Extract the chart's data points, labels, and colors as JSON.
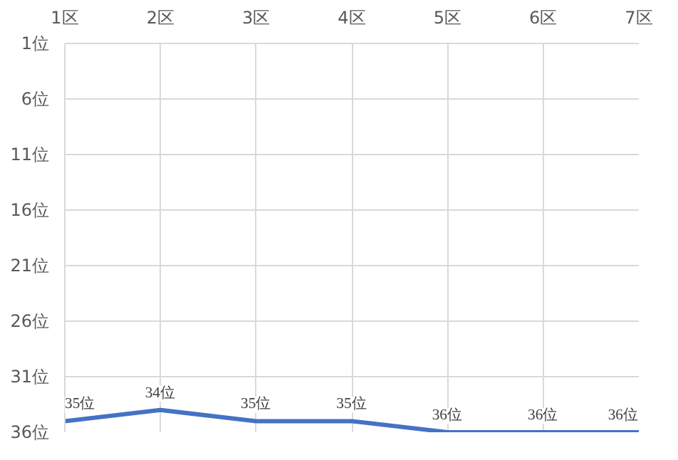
{
  "chart_data": {
    "type": "line",
    "categories": [
      "1区",
      "2区",
      "3区",
      "4区",
      "5区",
      "6区",
      "7区"
    ],
    "series": [
      {
        "color": "#4472c4",
        "values": [
          35,
          34,
          35,
          35,
          36,
          36,
          36
        ],
        "value_labels": [
          "35位",
          "34位",
          "35位",
          "35位",
          "36位",
          "36位",
          "36位"
        ]
      }
    ],
    "ylim": [
      36,
      1
    ],
    "yticks": [
      {
        "value": 1,
        "label": "1位"
      },
      {
        "value": 6,
        "label": "6位"
      },
      {
        "value": 11,
        "label": "11位"
      },
      {
        "value": 16,
        "label": "16位"
      },
      {
        "value": 21,
        "label": "21位"
      },
      {
        "value": 26,
        "label": "26位"
      },
      {
        "value": 31,
        "label": "31位"
      },
      {
        "value": 36,
        "label": "36位"
      }
    ],
    "grid": true,
    "marker": "none",
    "line_style": "solid"
  }
}
